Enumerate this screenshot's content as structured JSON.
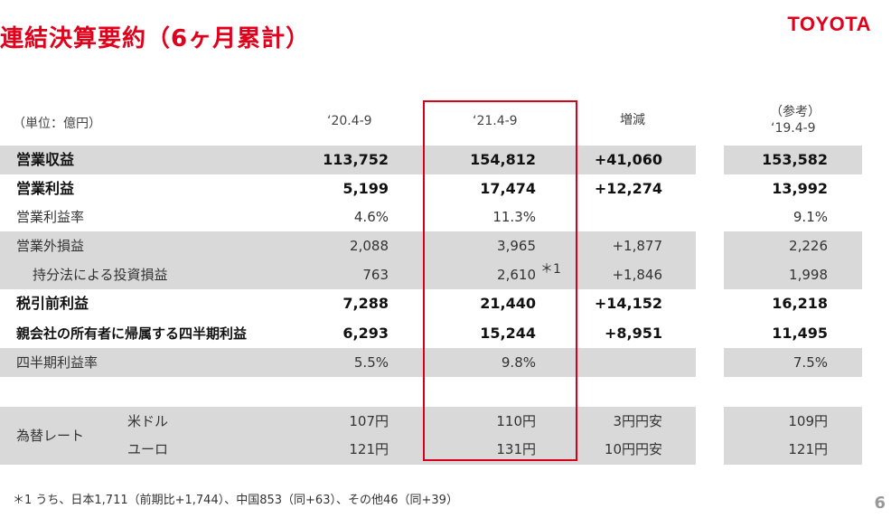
{
  "title": "連結決算要約（6ヶ月累計）",
  "logo_text": "TOYOTA",
  "page_number": "6",
  "header": {
    "unit": "（単位：億円）",
    "col1": "‘20.4-9",
    "col2": "‘21.4-9",
    "col3": "増減",
    "col4_line1": "（参考）",
    "col4_line2": "‘19.4-9"
  },
  "rows": [
    {
      "label": "営業収益",
      "c1": "113,752",
      "c2": "154,812",
      "c3": "+41,060",
      "c4": "153,582"
    },
    {
      "label": "営業利益",
      "c1": "5,199",
      "c2": "17,474",
      "c3": "+12,274",
      "c4": "13,992"
    },
    {
      "label": "営業利益率",
      "c1": "4.6%",
      "c2": "11.3%",
      "c3": "",
      "c4": "9.1%"
    },
    {
      "label": "営業外損益",
      "c1": "2,088",
      "c2": "3,965",
      "c3": "+1,877",
      "c4": "2,226"
    },
    {
      "label": "持分法による投資損益",
      "c1": "763",
      "c2": "2,610",
      "c3": "+1,846",
      "c4": "1,998"
    },
    {
      "label": "税引前利益",
      "c1": "7,288",
      "c2": "21,440",
      "c3": "+14,152",
      "c4": "16,218"
    },
    {
      "label": "親会社の所有者に帰属する四半期利益",
      "c1": "6,293",
      "c2": "15,244",
      "c3": "+8,951",
      "c4": "11,495"
    },
    {
      "label": "四半期利益率",
      "c1": "5.5%",
      "c2": "9.8%",
      "c3": "",
      "c4": "7.5%"
    }
  ],
  "note_marker": "＊1",
  "fx": {
    "label": "為替レート",
    "rows": [
      {
        "currency": "米ドル",
        "c1": "107円",
        "c2": "110円",
        "c3": "3円円安",
        "c4": "109円"
      },
      {
        "currency": "ユーロ",
        "c1": "121円",
        "c2": "131円",
        "c3": "10円円安",
        "c4": "121円"
      }
    ]
  },
  "footnote": "＊1 うち、日本1,711（前期比+1,744）、中国853（同+63）、その他46（同+39）"
}
